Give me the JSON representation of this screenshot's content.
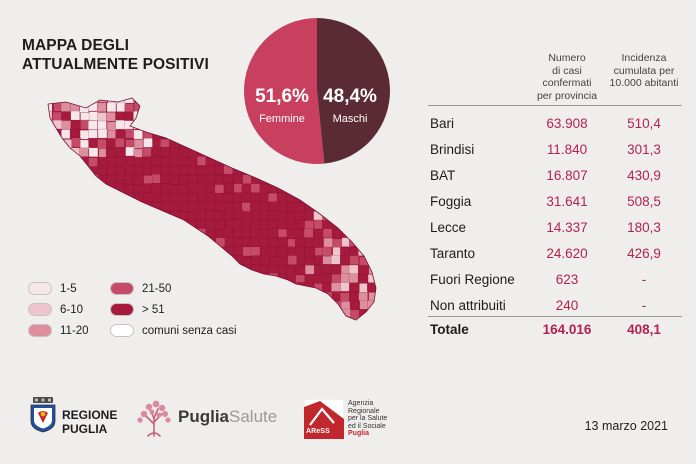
{
  "title_lines": [
    "MAPPA DEGLI",
    "ATTUALMENTE POSITIVI"
  ],
  "gender": {
    "female": {
      "pct": 51.6,
      "label_pct": "51,6%",
      "label": "Femmine",
      "color": "#c9405f"
    },
    "male": {
      "pct": 48.4,
      "label_pct": "48,4%",
      "label": "Maschi",
      "color": "#5a2b34"
    }
  },
  "legend": [
    {
      "label": "1-5",
      "color": "#f6e8ea"
    },
    {
      "label": "6-10",
      "color": "#efc5cd"
    },
    {
      "label": "11-20",
      "color": "#dd8e9f"
    },
    {
      "label": "21-50",
      "color": "#c64b68"
    },
    {
      "label": "> 51",
      "color": "#a61a3e"
    },
    {
      "label": "comuni senza casi",
      "color": "#ffffff"
    }
  ],
  "table": {
    "col1_header": [
      "Numero",
      "di casi confermati",
      "per provincia"
    ],
    "col2_header": [
      "Incidenza",
      "cumulata per",
      "10.000 abitanti"
    ],
    "rows": [
      {
        "name": "Bari",
        "cases": "63.908",
        "incidence": "510,4"
      },
      {
        "name": "Brindisi",
        "cases": "11.840",
        "incidence": "301,3"
      },
      {
        "name": "BAT",
        "cases": "16.807",
        "incidence": "430,9"
      },
      {
        "name": "Foggia",
        "cases": "31.641",
        "incidence": "508,5"
      },
      {
        "name": "Lecce",
        "cases": "14.337",
        "incidence": "180,3"
      },
      {
        "name": "Taranto",
        "cases": "24.620",
        "incidence": "426,9"
      },
      {
        "name": "Fuori Regione",
        "cases": "623",
        "incidence": "-"
      },
      {
        "name": "Non attribuiti",
        "cases": "240",
        "incidence": "-"
      }
    ],
    "total": {
      "name": "Totale",
      "cases": "164.016",
      "incidence": "408,1"
    }
  },
  "logos": {
    "regione_line1": "REGIONE",
    "regione_line2": "PUGLIA",
    "puglia_salute_a": "Puglia",
    "puglia_salute_b": "Salute",
    "aress_abbr": "AReSS",
    "aress_text": [
      "Agenzia",
      "Regionale",
      "per la Salute",
      "ed il Sociale",
      "Puglia"
    ]
  },
  "date": "13 marzo 2021"
}
